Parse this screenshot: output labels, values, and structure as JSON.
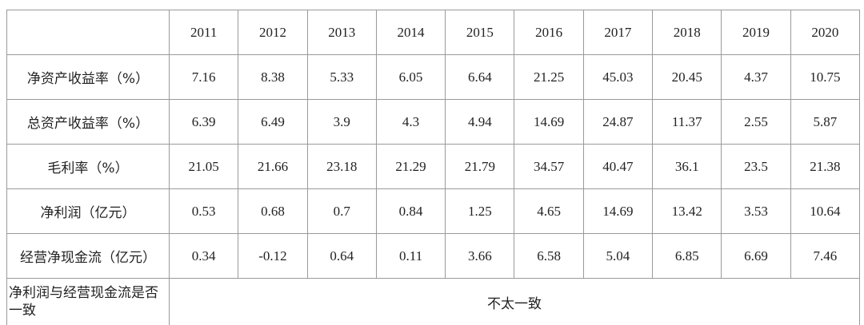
{
  "table": {
    "header": [
      "2011",
      "2012",
      "2013",
      "2014",
      "2015",
      "2016",
      "2017",
      "2018",
      "2019",
      "2020"
    ],
    "rows": [
      {
        "label": "净资产收益率（%）",
        "values": [
          "7.16",
          "8.38",
          "5.33",
          "6.05",
          "6.64",
          "21.25",
          "45.03",
          "20.45",
          "4.37",
          "10.75"
        ]
      },
      {
        "label": "总资产收益率（%）",
        "values": [
          "6.39",
          "6.49",
          "3.9",
          "4.3",
          "4.94",
          "14.69",
          "24.87",
          "11.37",
          "2.55",
          "5.87"
        ]
      },
      {
        "label": "毛利率（%）",
        "values": [
          "21.05",
          "21.66",
          "23.18",
          "21.29",
          "21.79",
          "34.57",
          "40.47",
          "36.1",
          "23.5",
          "21.38"
        ]
      },
      {
        "label": "净利润（亿元）",
        "values": [
          "0.53",
          "0.68",
          "0.7",
          "0.84",
          "1.25",
          "4.65",
          "14.69",
          "13.42",
          "3.53",
          "10.64"
        ]
      },
      {
        "label": "经营净现金流（亿元）",
        "values": [
          "0.34",
          "-0.12",
          "0.64",
          "0.11",
          "3.66",
          "6.58",
          "5.04",
          "6.85",
          "6.69",
          "7.46"
        ]
      }
    ],
    "summary": {
      "label": "净利润与经营现金流是否一致",
      "text": "不太一致"
    }
  }
}
